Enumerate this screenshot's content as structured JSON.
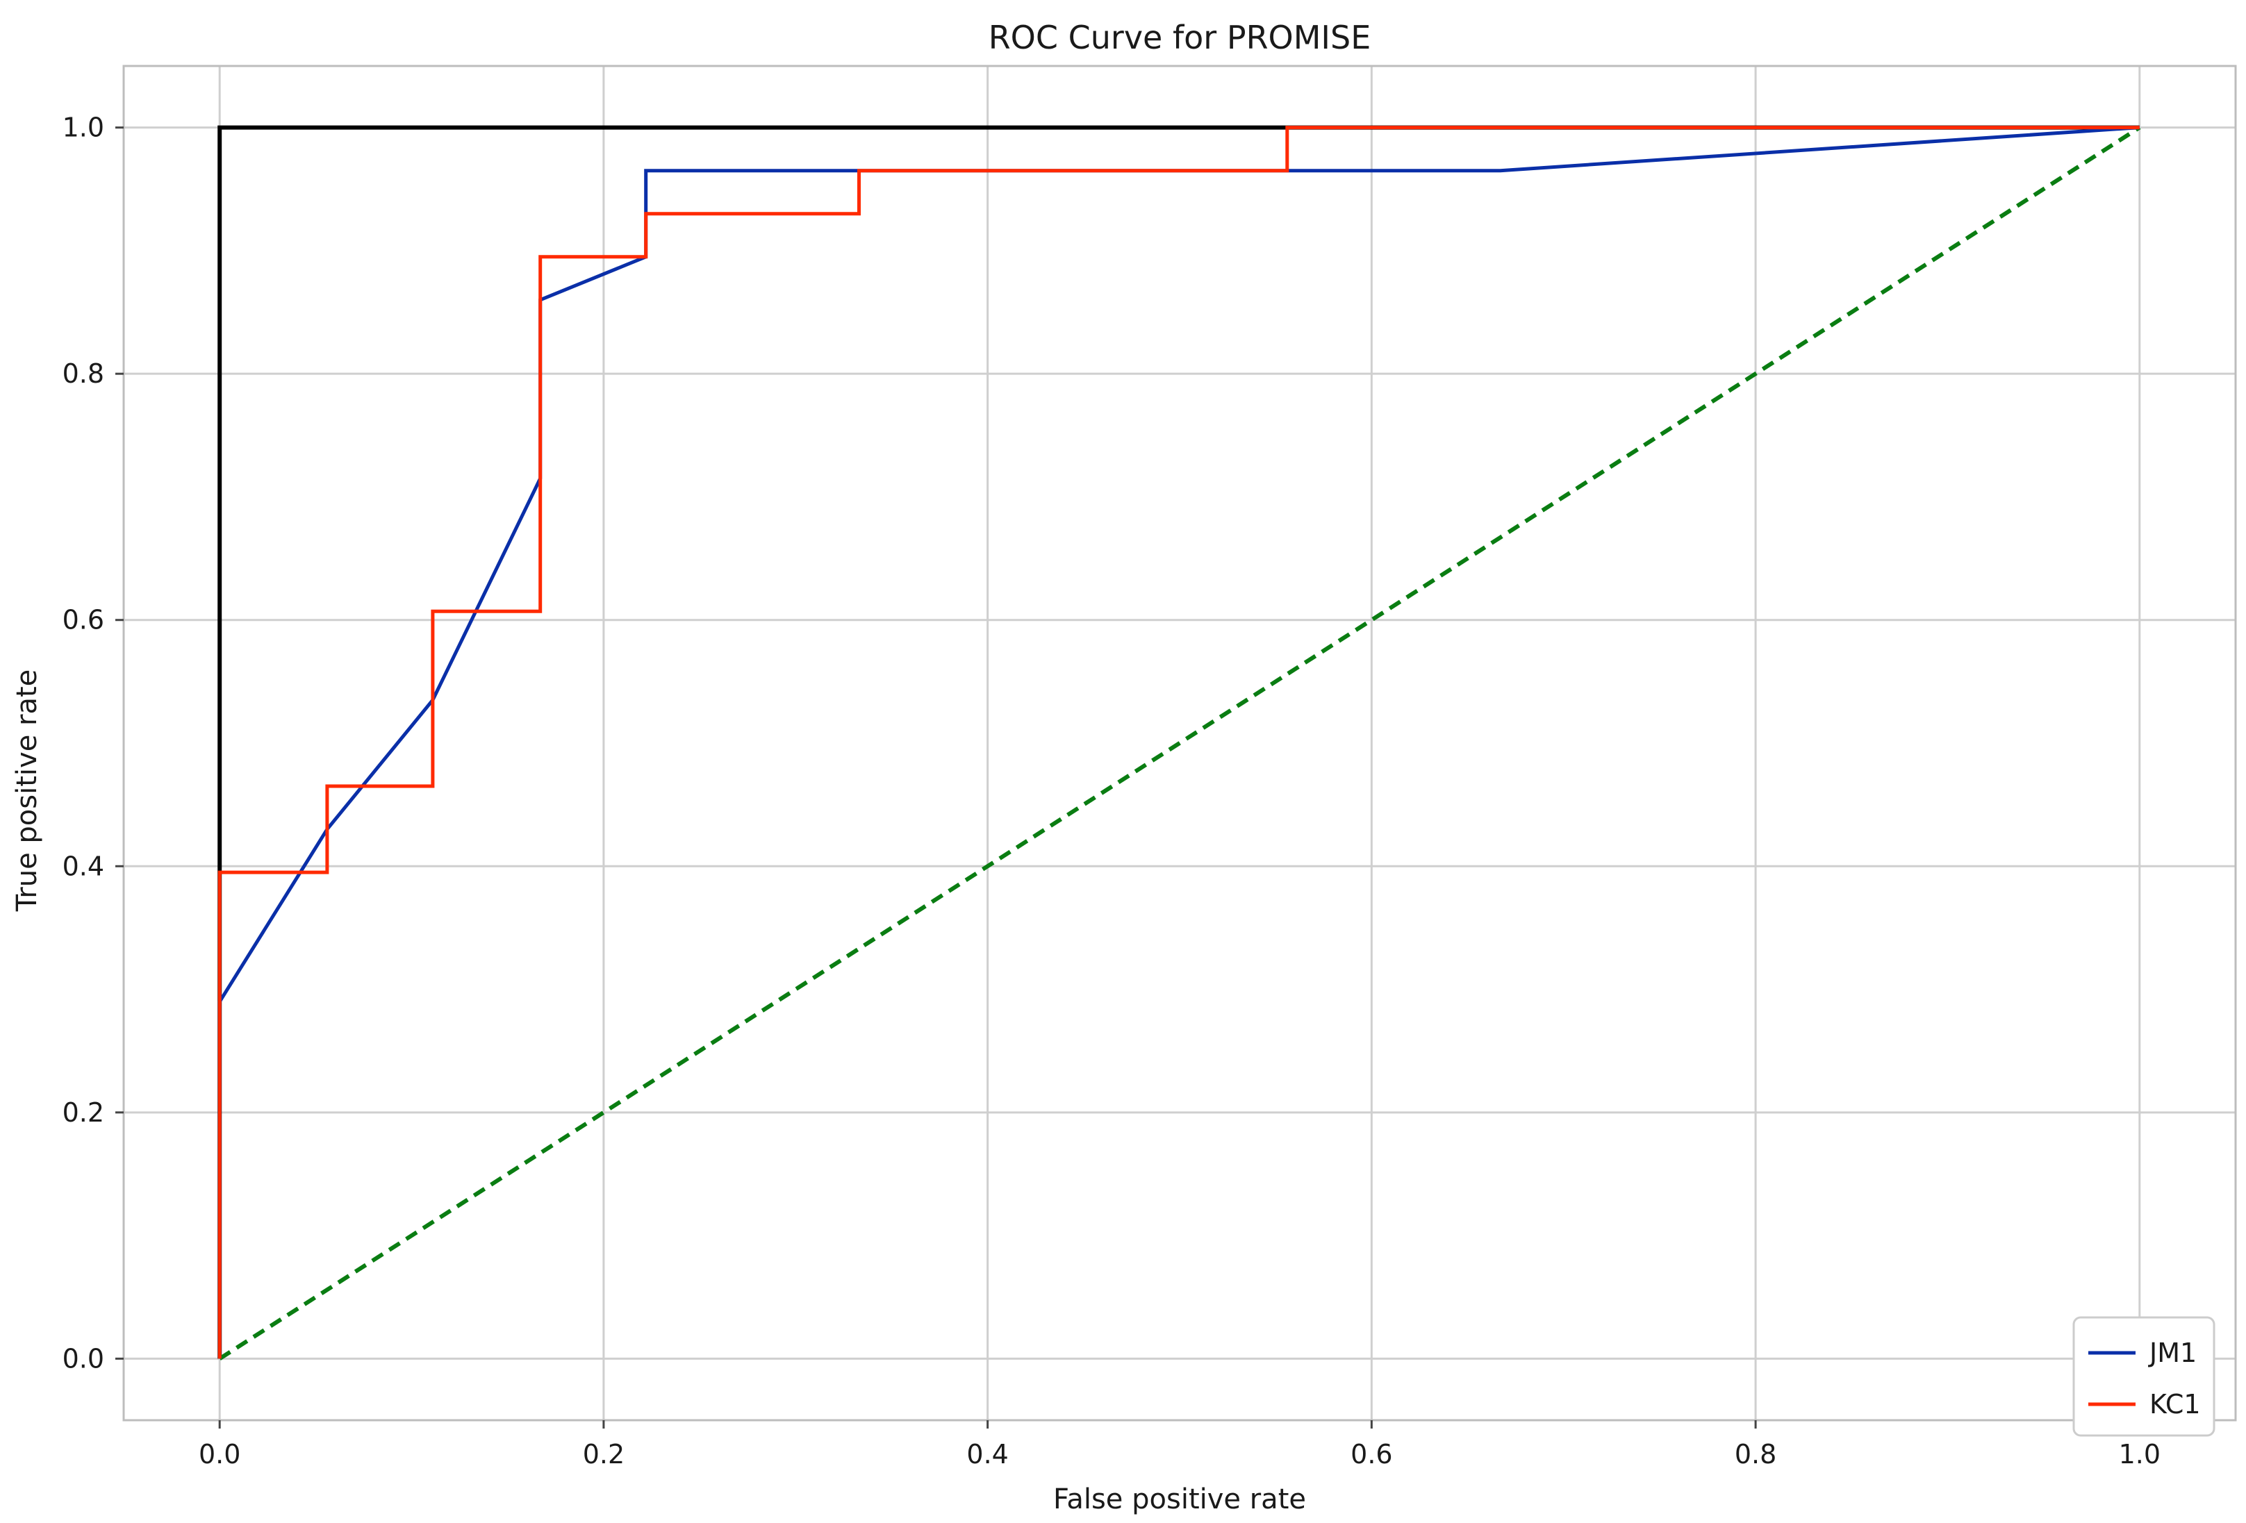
{
  "chart_data": {
    "type": "line",
    "title": "ROC Curve for PROMISE",
    "xlabel": "False positive rate",
    "ylabel": "True positive rate",
    "xlim": [
      -0.05,
      1.05
    ],
    "ylim": [
      -0.05,
      1.05
    ],
    "xticks": [
      0.0,
      0.2,
      0.4,
      0.6,
      0.8,
      1.0
    ],
    "xtick_labels": [
      "0.0",
      "0.2",
      "0.4",
      "0.6",
      "0.8",
      "1.0"
    ],
    "yticks": [
      0.0,
      0.2,
      0.4,
      0.6,
      0.8,
      1.0
    ],
    "ytick_labels": [
      "0.0",
      "0.2",
      "0.4",
      "0.6",
      "0.8",
      "1.0"
    ],
    "grid": true,
    "legend_position": "bottom-right",
    "series": [
      {
        "name": "JM1",
        "color": "#0a2fa8",
        "style": "solid",
        "points": [
          [
            0.0,
            0.0
          ],
          [
            0.0,
            0.29
          ],
          [
            0.056,
            0.43
          ],
          [
            0.111,
            0.535
          ],
          [
            0.167,
            0.715
          ],
          [
            0.167,
            0.86
          ],
          [
            0.222,
            0.895
          ],
          [
            0.222,
            0.965
          ],
          [
            0.667,
            0.965
          ],
          [
            1.0,
            1.0
          ]
        ]
      },
      {
        "name": "KC1",
        "color": "#ff2a00",
        "style": "solid",
        "points": [
          [
            0.0,
            0.0
          ],
          [
            0.0,
            0.395
          ],
          [
            0.056,
            0.395
          ],
          [
            0.056,
            0.465
          ],
          [
            0.111,
            0.465
          ],
          [
            0.111,
            0.607
          ],
          [
            0.167,
            0.607
          ],
          [
            0.167,
            0.895
          ],
          [
            0.222,
            0.895
          ],
          [
            0.222,
            0.93
          ],
          [
            0.333,
            0.93
          ],
          [
            0.333,
            0.965
          ],
          [
            0.556,
            0.965
          ],
          [
            0.556,
            1.0
          ],
          [
            1.0,
            1.0
          ]
        ]
      }
    ],
    "reference_lines": [
      {
        "color": "#000000",
        "style": "solid",
        "points": [
          [
            0.0,
            0.0
          ],
          [
            0.0,
            1.0
          ],
          [
            1.0,
            1.0
          ]
        ]
      },
      {
        "color": "#0a7d12",
        "style": "dashed",
        "points": [
          [
            0.0,
            0.0
          ],
          [
            1.0,
            1.0
          ]
        ]
      }
    ]
  }
}
